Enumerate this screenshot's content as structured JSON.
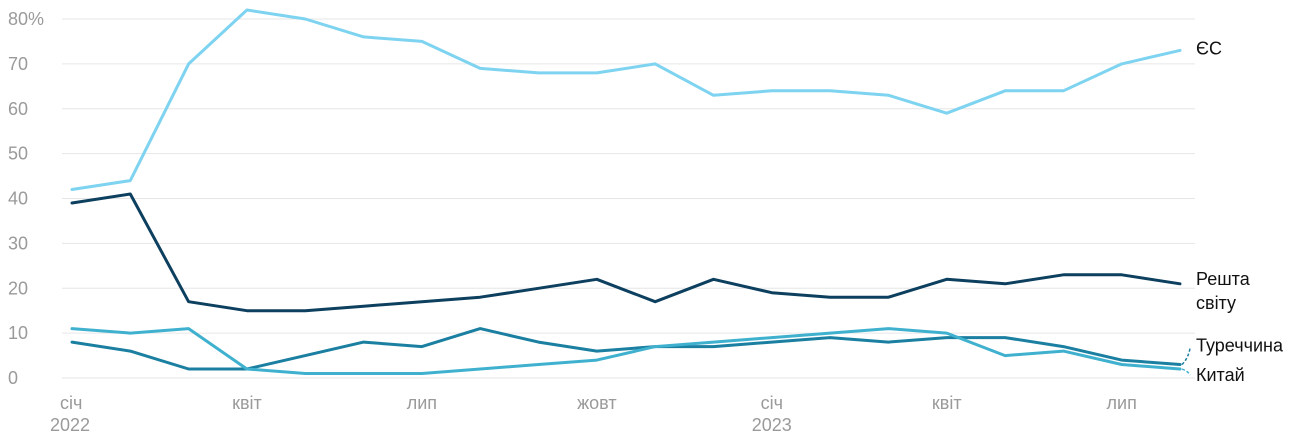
{
  "chart_data": {
    "type": "line",
    "y_unit_suffix": "%",
    "ylim": [
      0,
      80
    ],
    "y_ticks": [
      0,
      10,
      20,
      30,
      40,
      50,
      60,
      70,
      80
    ],
    "grid": true,
    "x_ticks": [
      {
        "index": 0,
        "label": "січ",
        "year": "2022"
      },
      {
        "index": 3,
        "label": "квіт"
      },
      {
        "index": 6,
        "label": "лип"
      },
      {
        "index": 9,
        "label": "жовт"
      },
      {
        "index": 12,
        "label": "січ",
        "year": "2023"
      },
      {
        "index": 15,
        "label": "квіт"
      },
      {
        "index": 18,
        "label": "лип"
      }
    ],
    "x": [
      "2022-01",
      "2022-02",
      "2022-03",
      "2022-04",
      "2022-05",
      "2022-06",
      "2022-07",
      "2022-08",
      "2022-09",
      "2022-10",
      "2022-11",
      "2022-12",
      "2023-01",
      "2023-02",
      "2023-03",
      "2023-04",
      "2023-05",
      "2023-06",
      "2023-07",
      "2023-08"
    ],
    "series": [
      {
        "name": "ЄС",
        "color": "#7dd3f0",
        "values": [
          42,
          44,
          70,
          82,
          80,
          76,
          75,
          69,
          68,
          68,
          70,
          63,
          64,
          64,
          63,
          59,
          64,
          64,
          70,
          73
        ]
      },
      {
        "name": "Решта світу",
        "name_lines": [
          "Решта",
          "світу"
        ],
        "color": "#0d3f5f",
        "values": [
          39,
          41,
          17,
          15,
          15,
          16,
          17,
          18,
          20,
          22,
          17,
          22,
          19,
          18,
          18,
          22,
          21,
          23,
          23,
          21
        ]
      },
      {
        "name": "Туреччина",
        "color": "#1a7fa0",
        "values": [
          8,
          6,
          2,
          2,
          5,
          8,
          7,
          11,
          8,
          6,
          7,
          7,
          8,
          9,
          8,
          9,
          9,
          7,
          4,
          3
        ]
      },
      {
        "name": "Китай",
        "color": "#3fb1cf",
        "values": [
          11,
          10,
          11,
          2,
          1,
          1,
          1,
          2,
          3,
          4,
          7,
          8,
          9,
          10,
          11,
          10,
          5,
          6,
          3,
          2
        ]
      }
    ]
  }
}
